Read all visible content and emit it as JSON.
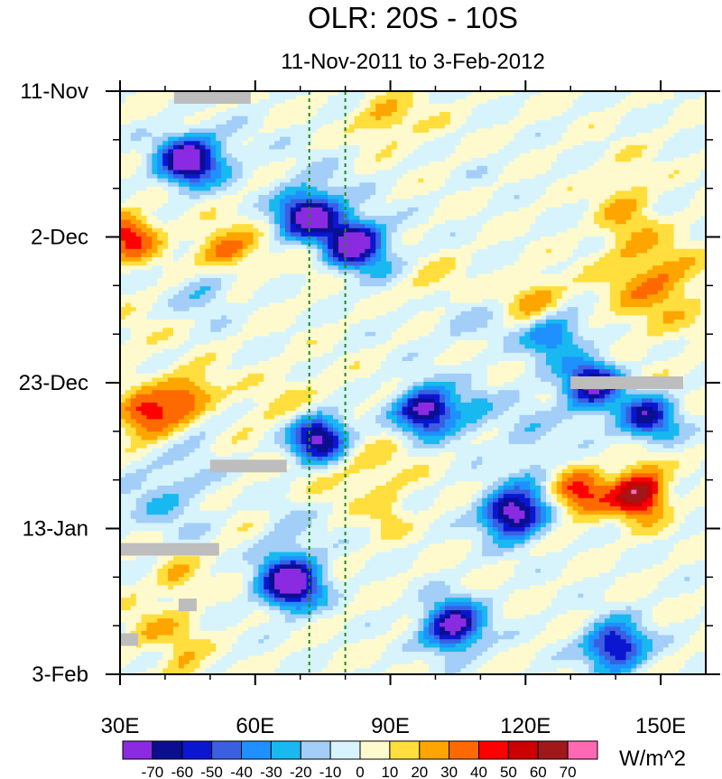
{
  "chart_data": {
    "type": "heatmap",
    "title": "OLR: 20S - 10S",
    "subtitle": "11-Nov-2011 to 3-Feb-2012",
    "x_axis": {
      "range": [
        30,
        160
      ],
      "ticks": [
        {
          "value": 30,
          "label": "30E"
        },
        {
          "value": 60,
          "label": "60E"
        },
        {
          "value": 90,
          "label": "90E"
        },
        {
          "value": 120,
          "label": "120E"
        },
        {
          "value": 150,
          "label": "150E"
        }
      ]
    },
    "y_axis": {
      "range_days": [
        0,
        84
      ],
      "reversed": true,
      "ticks": [
        {
          "day": 0,
          "label": "11-Nov"
        },
        {
          "day": 21,
          "label": "2-Dec"
        },
        {
          "day": 42,
          "label": "23-Dec"
        },
        {
          "day": 63,
          "label": "13-Jan"
        },
        {
          "day": 84,
          "label": "3-Feb"
        }
      ]
    },
    "reference_lines_lon": [
      72,
      80
    ],
    "colorbar": {
      "units": "W/m^2",
      "levels": [
        -70,
        -60,
        -50,
        -40,
        -30,
        -20,
        -10,
        0,
        10,
        20,
        30,
        40,
        50,
        60,
        70
      ],
      "labels": [
        "-70",
        "-60",
        "-50",
        "-40",
        "-30",
        "-20",
        "-10",
        "0",
        "10",
        "20",
        "30",
        "40",
        "50",
        "60",
        "70"
      ],
      "colors": [
        "#8a2be2",
        "#0b0f8f",
        "#0b16d1",
        "#3b5fe0",
        "#1e90ff",
        "#18b8f0",
        "#a3cef7",
        "#d7f4fd",
        "#fffacd",
        "#ffde3d",
        "#ffa500",
        "#ff6a00",
        "#ff0000",
        "#cc0000",
        "#a0181a",
        "#ff69b4"
      ]
    },
    "features": [
      {
        "lon": 45,
        "day": 10,
        "anomaly": -70
      },
      {
        "lon": 72,
        "day": 18,
        "anomaly": -70
      },
      {
        "lon": 82,
        "day": 22,
        "anomaly": -70
      },
      {
        "lon": 98,
        "day": 46,
        "anomaly": -70
      },
      {
        "lon": 74,
        "day": 50,
        "anomaly": -70
      },
      {
        "lon": 117,
        "day": 61,
        "anomaly": -70
      },
      {
        "lon": 68,
        "day": 71,
        "anomaly": -70
      },
      {
        "lon": 104,
        "day": 77,
        "anomaly": -70
      },
      {
        "lon": 135,
        "day": 42,
        "anomaly": -60
      },
      {
        "lon": 147,
        "day": 47,
        "anomaly": -60
      },
      {
        "lon": 140,
        "day": 80,
        "anomaly": -60
      },
      {
        "lon": 145,
        "day": 58,
        "anomaly": 50
      },
      {
        "lon": 132,
        "day": 58,
        "anomaly": 40
      },
      {
        "lon": 46,
        "day": 44,
        "anomaly": 40
      },
      {
        "lon": 36,
        "day": 47,
        "anomaly": 40
      },
      {
        "lon": 32,
        "day": 21,
        "anomaly": 40
      },
      {
        "lon": 53,
        "day": 23,
        "anomaly": 30
      },
      {
        "lon": 122,
        "day": 31,
        "anomaly": 20
      },
      {
        "lon": 89,
        "day": 4,
        "anomaly": 20
      },
      {
        "lon": 126,
        "day": 35,
        "anomaly": -40
      }
    ],
    "missing_data_bars": [
      {
        "lon_start": 42,
        "lon_end": 59,
        "day": 0
      },
      {
        "lon_start": 130,
        "lon_end": 155,
        "day": 42
      },
      {
        "lon_start": 50,
        "lon_end": 67,
        "day": 54
      },
      {
        "lon_start": 30,
        "lon_end": 52,
        "day": 66
      },
      {
        "lon_start": 43,
        "lon_end": 47,
        "day": 74
      },
      {
        "lon_start": 30,
        "lon_end": 34,
        "day": 79
      }
    ]
  }
}
